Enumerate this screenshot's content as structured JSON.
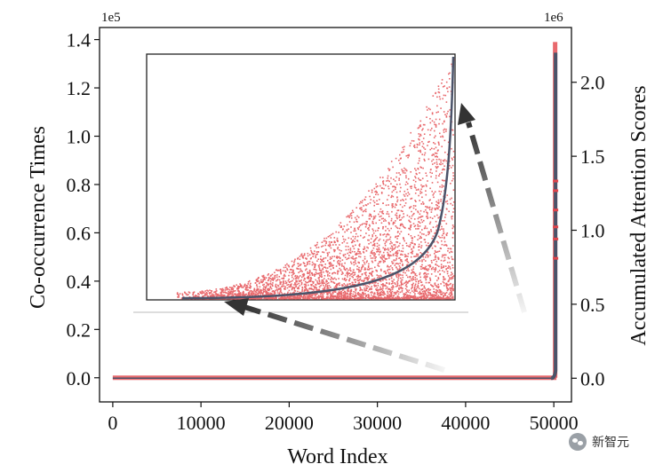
{
  "chart_data": {
    "type": "scatter",
    "xlabel": "Word Index",
    "ylabel_left": "Co-occurrence Times",
    "ylabel_right": "Accumulated Attention Scores",
    "left_multiplier": "1e5",
    "right_multiplier": "1e6",
    "x_ticks": [
      0,
      10000,
      20000,
      30000,
      40000,
      50000
    ],
    "y_left_ticks": [
      "0.0",
      "0.2",
      "0.4",
      "0.6",
      "0.8",
      "1.0",
      "1.2",
      "1.4"
    ],
    "y_right_ticks": [
      "0.0",
      "0.5",
      "1.0",
      "1.5",
      "2.0"
    ],
    "xlim": [
      -1500,
      52000
    ],
    "ylim_left": [
      -0.1,
      1.45
    ],
    "ylim_right": [
      -0.16,
      2.37
    ],
    "colors": {
      "scatter": "#e8696d",
      "curve": "#4b5369",
      "arrow": "#333333"
    },
    "series": [
      {
        "kind": "scatter",
        "axis": "left",
        "x_range": [
          0,
          50300
        ],
        "y_typical_max": 0.001,
        "y_max": 1.39
      },
      {
        "kind": "line",
        "axis": "right",
        "x_range": [
          0,
          50300
        ],
        "y_end": 2.2
      }
    ],
    "inset": {
      "description_shown": false,
      "zoom_of": "scatter and cumulative curve near tail"
    }
  },
  "watermark": {
    "text": "新智元"
  }
}
